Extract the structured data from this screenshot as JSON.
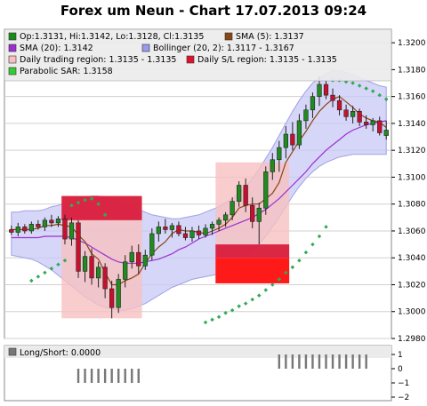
{
  "title": "Forex um Neun - Chart 17.07.2013 09:24",
  "colors": {
    "up": "#1f8c1f",
    "down": "#c8102e",
    "sma5": "#8b4513",
    "sma20": "#9b30d0",
    "bollinger_fill": "#c8c8f5",
    "bollinger_line": "#a0a0e8",
    "trading_region": "#f8c0c0",
    "sl_region_1": "#d81e3c",
    "sl_region_2": "#ff1a1a",
    "sar": "#33aa55",
    "panel_bg": "#ebebeb"
  },
  "legend": [
    {
      "label": "Op:1.3131, Hi:1.3142, Lo:1.3128, Cl:1.3135",
      "color": "#1a8a1a"
    },
    {
      "label": "SMA (5): 1.3137",
      "color": "#8b4513"
    },
    {
      "label": "SMA (20): 1.3142",
      "color": "#9b30d0"
    },
    {
      "label": "Bollinger (20, 2): 1.3117 - 1.3167",
      "color": "#9999ee"
    },
    {
      "label": "Daily trading region: 1.3135 - 1.3135",
      "color": "#f8c0c0"
    },
    {
      "label": "Daily S/L region: 1.3135 - 1.3135",
      "color": "#e01030"
    },
    {
      "label": "Parabolic SAR: 1.3158",
      "color": "#33cc33"
    }
  ],
  "subpanel_label": "Long/Short: 0.0000",
  "chart_data": [
    {
      "type": "candlestick",
      "title": "Forex um Neun - Chart 17.07.2013 09:24",
      "ylim": [
        1.298,
        1.321
      ],
      "y_ticks": [
        "1.3200",
        "1.3180",
        "1.3160",
        "1.3140",
        "1.3120",
        "1.3100",
        "1.3080",
        "1.3060",
        "1.3040",
        "1.3020",
        "1.3000",
        "1.2980"
      ],
      "grid": true,
      "ohlc": [
        [
          1.3061,
          1.3064,
          1.3057,
          1.3059
        ],
        [
          1.3059,
          1.3066,
          1.3056,
          1.3063
        ],
        [
          1.3063,
          1.3065,
          1.3058,
          1.306
        ],
        [
          1.306,
          1.3067,
          1.3058,
          1.3065
        ],
        [
          1.3065,
          1.3068,
          1.3061,
          1.3063
        ],
        [
          1.3063,
          1.307,
          1.306,
          1.3068
        ],
        [
          1.3068,
          1.3072,
          1.3063,
          1.3066
        ],
        [
          1.3066,
          1.3071,
          1.3063,
          1.3069
        ],
        [
          1.3069,
          1.3072,
          1.305,
          1.3054
        ],
        [
          1.3054,
          1.307,
          1.3049,
          1.3066
        ],
        [
          1.3066,
          1.3068,
          1.3025,
          1.303
        ],
        [
          1.303,
          1.3045,
          1.3022,
          1.3041
        ],
        [
          1.3041,
          1.3047,
          1.302,
          1.3025
        ],
        [
          1.3025,
          1.3037,
          1.3018,
          1.3033
        ],
        [
          1.3033,
          1.3036,
          1.301,
          1.3017
        ],
        [
          1.3017,
          1.3023,
          1.2995,
          1.3003
        ],
        [
          1.3003,
          1.3028,
          1.2999,
          1.3024
        ],
        [
          1.3024,
          1.3042,
          1.3018,
          1.3037
        ],
        [
          1.3037,
          1.3049,
          1.3032,
          1.3044
        ],
        [
          1.3044,
          1.305,
          1.3028,
          1.3034
        ],
        [
          1.3034,
          1.3046,
          1.3031,
          1.3042
        ],
        [
          1.3042,
          1.3062,
          1.3038,
          1.3058
        ],
        [
          1.3058,
          1.3067,
          1.3052,
          1.3063
        ],
        [
          1.3063,
          1.3069,
          1.3058,
          1.3061
        ],
        [
          1.3061,
          1.3066,
          1.3055,
          1.3064
        ],
        [
          1.3064,
          1.3067,
          1.3056,
          1.3058
        ],
        [
          1.3058,
          1.3063,
          1.3053,
          1.3055
        ],
        [
          1.3055,
          1.3063,
          1.3052,
          1.306
        ],
        [
          1.306,
          1.3064,
          1.3054,
          1.3057
        ],
        [
          1.3057,
          1.3065,
          1.3055,
          1.3062
        ],
        [
          1.3062,
          1.3067,
          1.3057,
          1.3065
        ],
        [
          1.3065,
          1.307,
          1.306,
          1.3068
        ],
        [
          1.3068,
          1.3074,
          1.3063,
          1.3072
        ],
        [
          1.3072,
          1.3085,
          1.3068,
          1.3082
        ],
        [
          1.3082,
          1.3097,
          1.3078,
          1.3094
        ],
        [
          1.3094,
          1.3099,
          1.3074,
          1.3079
        ],
        [
          1.3079,
          1.3085,
          1.3062,
          1.3067
        ],
        [
          1.3067,
          1.3081,
          1.305,
          1.3077
        ],
        [
          1.3077,
          1.3108,
          1.3072,
          1.3104
        ],
        [
          1.3104,
          1.3118,
          1.3098,
          1.3113
        ],
        [
          1.3113,
          1.3127,
          1.3104,
          1.3122
        ],
        [
          1.3122,
          1.3138,
          1.3114,
          1.3132
        ],
        [
          1.3132,
          1.3141,
          1.312,
          1.3124
        ],
        [
          1.3124,
          1.3147,
          1.3121,
          1.3142
        ],
        [
          1.3142,
          1.3154,
          1.3136,
          1.315
        ],
        [
          1.315,
          1.3163,
          1.3144,
          1.316
        ],
        [
          1.316,
          1.3175,
          1.3153,
          1.3169
        ],
        [
          1.3169,
          1.3172,
          1.3158,
          1.3161
        ],
        [
          1.3161,
          1.3166,
          1.3152,
          1.3157
        ],
        [
          1.3157,
          1.3161,
          1.3146,
          1.315
        ],
        [
          1.315,
          1.3154,
          1.3142,
          1.3145
        ],
        [
          1.3145,
          1.3153,
          1.314,
          1.3149
        ],
        [
          1.3149,
          1.3151,
          1.3138,
          1.3141
        ],
        [
          1.3141,
          1.3146,
          1.3136,
          1.3139
        ],
        [
          1.3139,
          1.3144,
          1.3134,
          1.3142
        ],
        [
          1.3142,
          1.3145,
          1.3131,
          1.3133
        ],
        [
          1.3131,
          1.3142,
          1.3128,
          1.3135
        ]
      ],
      "sma5": [
        1.3061,
        1.3061,
        1.3061,
        1.3061,
        1.3062,
        1.3064,
        1.3064,
        1.3065,
        1.3064,
        1.3063,
        1.3057,
        1.3052,
        1.3043,
        1.3039,
        1.3029,
        1.302,
        1.302,
        1.3023,
        1.3025,
        1.3028,
        1.3036,
        1.3043,
        1.3048,
        1.3052,
        1.3058,
        1.3061,
        1.306,
        1.306,
        1.3059,
        1.3058,
        1.306,
        1.3062,
        1.3065,
        1.307,
        1.3077,
        1.3079,
        1.308,
        1.308,
        1.3084,
        1.3088,
        1.3096,
        1.3111,
        1.3119,
        1.3127,
        1.3134,
        1.3142,
        1.3149,
        1.3154,
        1.3158,
        1.316,
        1.3156,
        1.3152,
        1.3147,
        1.3144,
        1.3142,
        1.3141,
        1.3137
      ],
      "sma20": [
        1.3055,
        1.3055,
        1.3055,
        1.3055,
        1.3055,
        1.3056,
        1.3056,
        1.3056,
        1.3056,
        1.3055,
        1.3053,
        1.3051,
        1.3048,
        1.3045,
        1.3042,
        1.3039,
        1.3037,
        1.3036,
        1.3036,
        1.3036,
        1.3037,
        1.3038,
        1.3039,
        1.3041,
        1.3043,
        1.3046,
        1.3048,
        1.3051,
        1.3054,
        1.3056,
        1.3058,
        1.306,
        1.3062,
        1.3064,
        1.3066,
        1.3068,
        1.307,
        1.3073,
        1.3076,
        1.308,
        1.3084,
        1.3089,
        1.3094,
        1.3099,
        1.3104,
        1.311,
        1.3115,
        1.312,
        1.3124,
        1.3128,
        1.3132,
        1.3135,
        1.3137,
        1.3139,
        1.314,
        1.3141,
        1.3142
      ],
      "boll_upper": [
        1.3074,
        1.3074,
        1.3075,
        1.3075,
        1.3075,
        1.3076,
        1.3078,
        1.3079,
        1.3081,
        1.3082,
        1.3084,
        1.3085,
        1.3086,
        1.3086,
        1.3085,
        1.3084,
        1.3082,
        1.308,
        1.3078,
        1.3076,
        1.3074,
        1.3072,
        1.3071,
        1.307,
        1.3069,
        1.3069,
        1.307,
        1.3071,
        1.3072,
        1.3074,
        1.3076,
        1.3078,
        1.3081,
        1.3084,
        1.3088,
        1.3093,
        1.3099,
        1.3106,
        1.3114,
        1.3122,
        1.3131,
        1.314,
        1.3149,
        1.3157,
        1.3164,
        1.317,
        1.3174,
        1.3177,
        1.3179,
        1.3179,
        1.3178,
        1.3176,
        1.3174,
        1.3172,
        1.317,
        1.3168,
        1.3167
      ],
      "boll_lower": [
        1.3042,
        1.3041,
        1.304,
        1.3039,
        1.3037,
        1.3034,
        1.3031,
        1.3027,
        1.3023,
        1.3019,
        1.3015,
        1.3011,
        1.3008,
        1.3005,
        1.3003,
        1.3002,
        1.3001,
        1.3001,
        1.3002,
        1.3004,
        1.3006,
        1.3009,
        1.3012,
        1.3015,
        1.3018,
        1.302,
        1.3022,
        1.3024,
        1.3025,
        1.3026,
        1.3027,
        1.3028,
        1.303,
        1.3032,
        1.3035,
        1.3039,
        1.3044,
        1.305,
        1.3056,
        1.3063,
        1.307,
        1.3078,
        1.3086,
        1.3093,
        1.3099,
        1.3104,
        1.3108,
        1.3111,
        1.3113,
        1.3115,
        1.3116,
        1.3117,
        1.3117,
        1.3117,
        1.3117,
        1.3117,
        1.3117
      ],
      "sar": [
        null,
        null,
        null,
        1.3023,
        1.3026,
        1.3029,
        1.3032,
        1.3035,
        1.3038,
        1.3079,
        1.3081,
        1.3083,
        1.3084,
        1.308,
        1.3072,
        null,
        null,
        null,
        null,
        null,
        null,
        null,
        null,
        null,
        null,
        null,
        null,
        null,
        null,
        1.2992,
        1.2994,
        1.2996,
        1.2999,
        1.3001,
        1.3004,
        1.3006,
        1.3009,
        1.3012,
        1.3016,
        1.302,
        1.3024,
        1.3029,
        1.3033,
        1.3038,
        1.3044,
        1.305,
        1.3056,
        1.3063,
        1.3172,
        1.3172,
        1.3171,
        1.317,
        1.3168,
        1.3166,
        1.3164,
        1.3161,
        1.3158
      ],
      "regions": [
        {
          "kind": "trading",
          "from_bar": 8,
          "to_bar": 19,
          "low": 1.2995,
          "high": 1.3086
        },
        {
          "kind": "sl",
          "from_bar": 8,
          "to_bar": 19,
          "low": 1.3068,
          "high": 1.3086
        },
        {
          "kind": "trading",
          "from_bar": 31,
          "to_bar": 41,
          "low": 1.3021,
          "high": 1.3111
        },
        {
          "kind": "sl",
          "from_bar": 31,
          "to_bar": 41,
          "low": 1.304,
          "high": 1.305
        },
        {
          "kind": "sl_strong",
          "from_bar": 31,
          "to_bar": 41,
          "low": 1.3021,
          "high": 1.304
        }
      ]
    },
    {
      "type": "bar",
      "title": "Long/Short: 0.0000",
      "ylim": [
        -2,
        1
      ],
      "y_ticks": [
        "1",
        "0",
        "−1",
        "−2"
      ],
      "values_by_bar": [
        0,
        0,
        0,
        0,
        0,
        0,
        0,
        0,
        0,
        0,
        -1,
        -1,
        -1,
        -1,
        -1,
        -1,
        -1,
        -1,
        -1,
        -1,
        0,
        0,
        0,
        0,
        0,
        0,
        0,
        0,
        0,
        0,
        0,
        0,
        0,
        0,
        0,
        0,
        0,
        0,
        0,
        0,
        1,
        1,
        1,
        1,
        1,
        1,
        1,
        1,
        1,
        1,
        1,
        1,
        1,
        1,
        0,
        0,
        0
      ]
    }
  ]
}
